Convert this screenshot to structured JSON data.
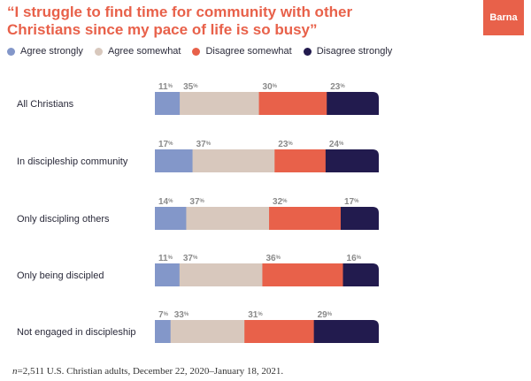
{
  "header": {
    "title_line1": "“I struggle to find time for community with other",
    "title_line2": "Christians since my pace of life is so busy”",
    "logo_text": "Barna"
  },
  "footnote": {
    "n_label": "n",
    "text": "=2,511 U.S. Christian adults, December 22, 2020–January 18, 2021."
  },
  "colors": {
    "title": "#e8614a",
    "series": [
      "#8397c9",
      "#d8c8bd",
      "#e8614a",
      "#221b4e"
    ],
    "label": "#8a8a8a"
  },
  "chart_data": {
    "type": "bar",
    "stacked": true,
    "orientation": "horizontal",
    "title": "“I struggle to find time for community with other Christians since my pace of life is so busy”",
    "categories": [
      "All Christians",
      "In discipleship community",
      "Only discipling others",
      "Only being discipled",
      "Not engaged in discipleship"
    ],
    "series": [
      {
        "name": "Agree strongly",
        "values": [
          11,
          17,
          14,
          11,
          7
        ]
      },
      {
        "name": "Agree somewhat",
        "values": [
          35,
          37,
          37,
          37,
          33
        ]
      },
      {
        "name": "Disagree somewhat",
        "values": [
          30,
          23,
          32,
          36,
          31
        ]
      },
      {
        "name": "Disagree strongly",
        "values": [
          23,
          24,
          17,
          16,
          29
        ]
      }
    ],
    "value_suffix": "%",
    "legend_position": "top-left"
  }
}
